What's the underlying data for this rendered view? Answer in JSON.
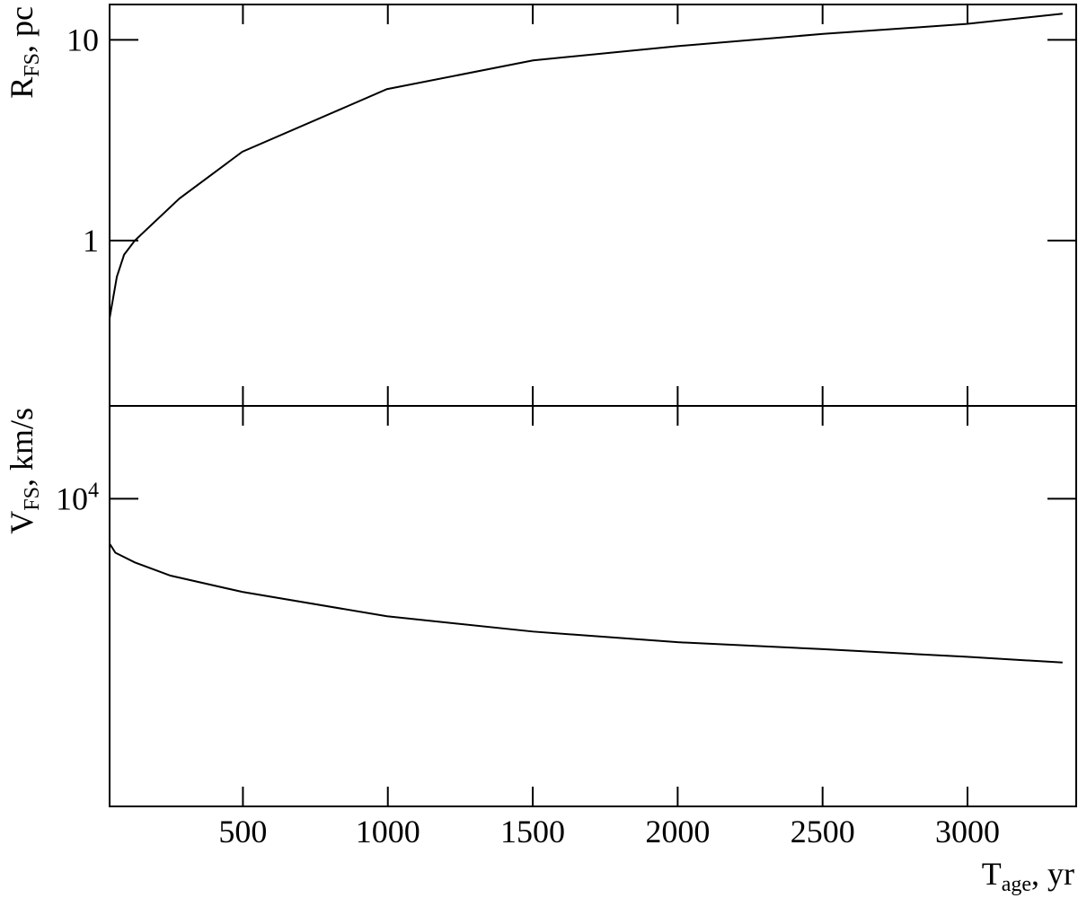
{
  "chart_data": [
    {
      "type": "line",
      "ylabel": "R_{FS}, pc",
      "log_y": true,
      "x": [
        40,
        65,
        90,
        127,
        281,
        498,
        997,
        1501,
        2000,
        2501,
        2997,
        3328
      ],
      "series": [
        {
          "color": "#000000",
          "values": [
            0.41,
            0.66,
            0.85,
            1.0,
            1.62,
            2.77,
            5.68,
            7.9,
            9.3,
            10.7,
            12.0,
            13.5
          ]
        }
      ],
      "xlim": [
        40,
        3375
      ],
      "xticks": [
        500,
        1000,
        1500,
        2000,
        2500,
        3000
      ],
      "ylim": [
        0.15,
        15
      ],
      "yticks": [
        1,
        10
      ]
    },
    {
      "type": "line",
      "ylabel": "V_{FS}, km/s",
      "xlabel": "T_{age}, yr",
      "log_y": true,
      "x": [
        40,
        60,
        127,
        250,
        498,
        997,
        1501,
        2000,
        2501,
        2997,
        3328
      ],
      "series": [
        {
          "color": "#000000",
          "values": [
            8650,
            8400,
            8140,
            7800,
            7400,
            6840,
            6510,
            6290,
            6150,
            6000,
            5890
          ]
        }
      ],
      "xlim": [
        40,
        3375
      ],
      "xticks": [
        500,
        1000,
        1500,
        2000,
        2500,
        3000
      ],
      "ylim": [
        3700,
        13500
      ],
      "yticks": [
        {
          "value": 10000,
          "label": "10^{4}"
        }
      ]
    }
  ]
}
